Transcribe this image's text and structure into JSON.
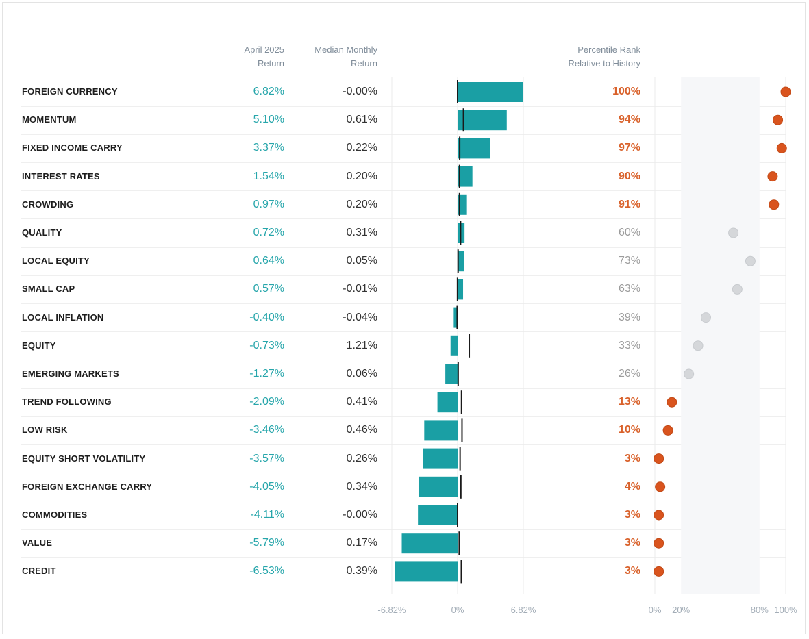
{
  "headers": {
    "return": "April 2025\nReturn",
    "median": "Median Monthly\nReturn",
    "percentile": "Percentile Rank\nRelative to History"
  },
  "chart_data": {
    "type": "bar",
    "title": "",
    "categories": [
      "FOREIGN CURRENCY",
      "MOMENTUM",
      "FIXED INCOME CARRY",
      "INTEREST RATES",
      "CROWDING",
      "QUALITY",
      "LOCAL EQUITY",
      "SMALL CAP",
      "LOCAL INFLATION",
      "EQUITY",
      "EMERGING MARKETS",
      "TREND FOLLOWING",
      "LOW RISK",
      "EQUITY SHORT VOLATILITY",
      "FOREIGN EXCHANGE CARRY",
      "COMMODITIES",
      "VALUE",
      "CREDIT"
    ],
    "series": [
      {
        "name": "April 2025 Return",
        "values": [
          6.82,
          5.1,
          3.37,
          1.54,
          0.97,
          0.72,
          0.64,
          0.57,
          -0.4,
          -0.73,
          -1.27,
          -2.09,
          -3.46,
          -3.57,
          -4.05,
          -4.11,
          -5.79,
          -6.53
        ]
      },
      {
        "name": "Median Monthly Return",
        "values": [
          -0.0,
          0.61,
          0.22,
          0.2,
          0.2,
          0.31,
          0.05,
          -0.01,
          -0.04,
          1.21,
          0.06,
          0.41,
          0.46,
          0.26,
          0.34,
          -0.0,
          0.17,
          0.39
        ]
      },
      {
        "name": "Percentile Rank Relative to History",
        "values": [
          100,
          94,
          97,
          90,
          91,
          60,
          73,
          63,
          39,
          33,
          26,
          13,
          10,
          3,
          4,
          3,
          3,
          3
        ]
      }
    ],
    "return_labels": [
      "6.82%",
      "5.10%",
      "3.37%",
      "1.54%",
      "0.97%",
      "0.72%",
      "0.64%",
      "0.57%",
      "-0.40%",
      "-0.73%",
      "-1.27%",
      "-2.09%",
      "-3.46%",
      "-3.57%",
      "-4.05%",
      "-4.11%",
      "-5.79%",
      "-6.53%"
    ],
    "median_labels": [
      "-0.00%",
      "0.61%",
      "0.22%",
      "0.20%",
      "0.20%",
      "0.31%",
      "0.05%",
      "-0.01%",
      "-0.04%",
      "1.21%",
      "0.06%",
      "0.41%",
      "0.46%",
      "0.26%",
      "0.34%",
      "-0.00%",
      "0.17%",
      "0.39%"
    ],
    "percentile_labels": [
      "100%",
      "94%",
      "97%",
      "90%",
      "91%",
      "60%",
      "73%",
      "63%",
      "39%",
      "33%",
      "26%",
      "13%",
      "10%",
      "3%",
      "4%",
      "3%",
      "3%",
      "3%"
    ],
    "highlighted": [
      true,
      true,
      true,
      true,
      true,
      false,
      false,
      false,
      false,
      false,
      false,
      true,
      true,
      true,
      true,
      true,
      true,
      true
    ],
    "bar_xlim": [
      -6.82,
      6.82
    ],
    "bar_ticks": [
      "-6.82%",
      "0%",
      "6.82%"
    ],
    "pct_xlim": [
      0,
      100
    ],
    "pct_ticks": [
      "0%",
      "20%",
      "80%",
      "100%"
    ],
    "pct_shaded_range": [
      20,
      80
    ]
  },
  "colors": {
    "bar": "#1a9fa4",
    "median_tick": "#1a1a1a",
    "dot_high": "#d9541e",
    "dot_low": "#d5d7da",
    "shade": "#f6f7f9"
  }
}
